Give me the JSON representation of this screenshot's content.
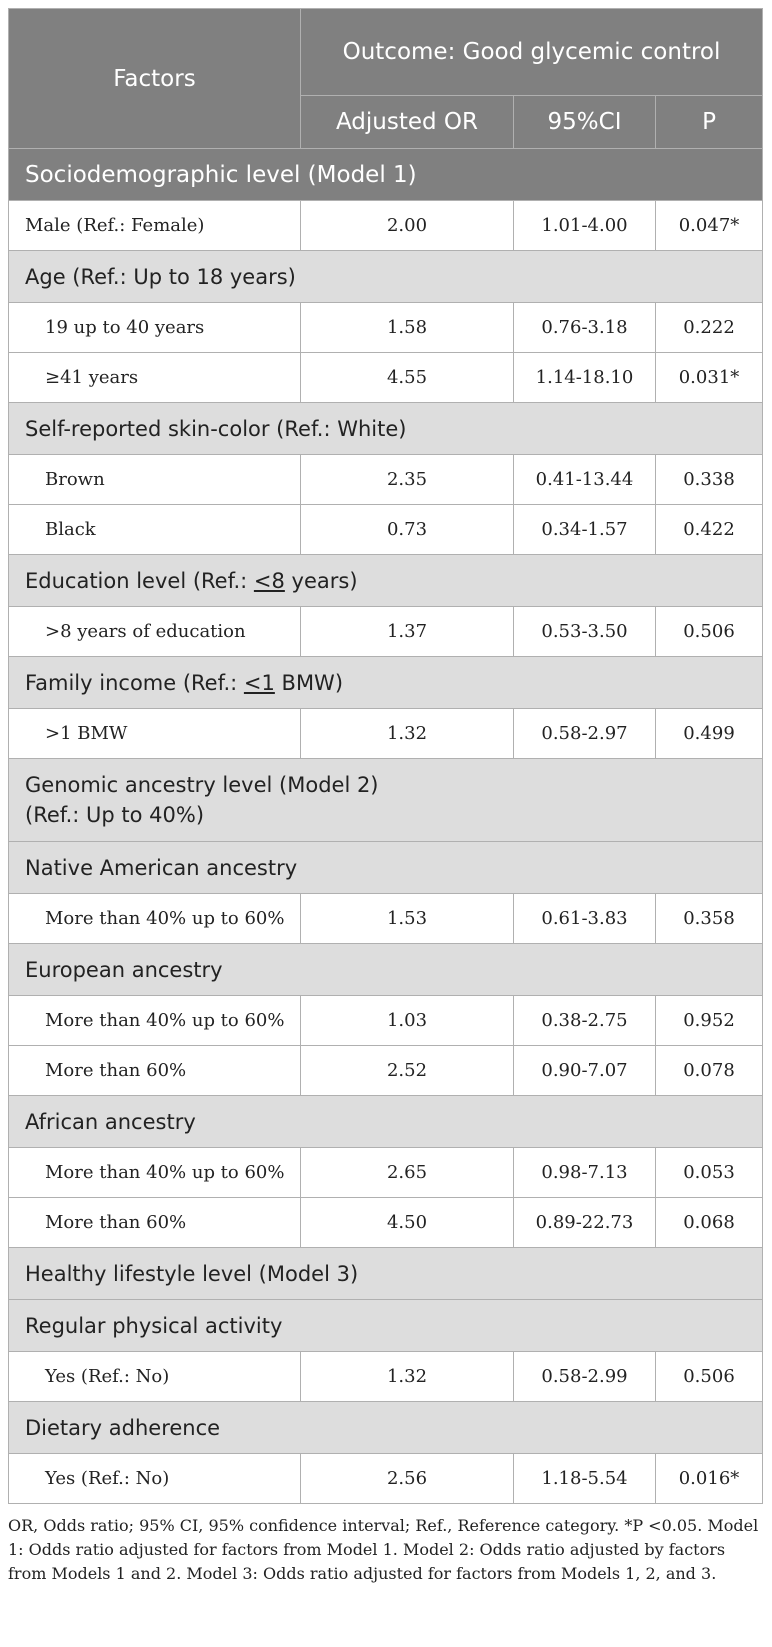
{
  "header": {
    "factors": "Factors",
    "outcome": "Outcome: Good glycemic control",
    "adjusted_or": "Adjusted OR",
    "ci": "95%CI",
    "p": "P"
  },
  "levels": {
    "model1": "Sociodemographic level (Model 1)",
    "model2": "Genomic ancestry level (Model 2)",
    "model2_ref": "(Ref.: Up to 40%)",
    "model3": "Healthy lifestyle level (Model 3)"
  },
  "categories": {
    "age": "Age (Ref.: Up to 18 years)",
    "skin": "Self-reported skin-color (Ref.: White)",
    "education_prefix": "Education level (Ref.: ",
    "education_ref": "<8",
    "education_suffix": " years)",
    "income_prefix": "Family income (Ref.: ",
    "income_ref": "<1",
    "income_suffix": " BMW)",
    "native": "Native American ancestry",
    "european": "European ancestry",
    "african": "African ancestry",
    "physical": "Regular physical activity",
    "diet": "Dietary adherence"
  },
  "rows": {
    "male": {
      "label": "Male (Ref.: Female)",
      "or": "2.00",
      "ci": "1.01-4.00",
      "p": "0.047*"
    },
    "age_19_40": {
      "label": "19 up to 40 years",
      "or": "1.58",
      "ci": "0.76-3.18",
      "p": "0.222"
    },
    "age_41": {
      "label": "≥41 years",
      "or": "4.55",
      "ci": "1.14-18.10",
      "p": "0.031*"
    },
    "brown": {
      "label": "Brown",
      "or": "2.35",
      "ci": "0.41-13.44",
      "p": "0.338"
    },
    "black": {
      "label": "Black",
      "or": "0.73",
      "ci": "0.34-1.57",
      "p": "0.422"
    },
    "edu_8": {
      "label": ">8 years of education",
      "or": "1.37",
      "ci": "0.53-3.50",
      "p": "0.506"
    },
    "income_1": {
      "label": ">1 BMW",
      "or": "1.32",
      "ci": "0.58-2.97",
      "p": "0.499"
    },
    "native_40_60": {
      "label": "More than 40% up to 60%",
      "or": "1.53",
      "ci": "0.61-3.83",
      "p": "0.358"
    },
    "euro_40_60": {
      "label": "More than 40% up to 60%",
      "or": "1.03",
      "ci": "0.38-2.75",
      "p": "0.952"
    },
    "euro_60": {
      "label": "More than 60%",
      "or": "2.52",
      "ci": "0.90-7.07",
      "p": "0.078"
    },
    "afr_40_60": {
      "label": "More than 40% up to 60%",
      "or": "2.65",
      "ci": "0.98-7.13",
      "p": "0.053"
    },
    "afr_60": {
      "label": "More than 60%",
      "or": "4.50",
      "ci": "0.89-22.73",
      "p": "0.068"
    },
    "phys_yes": {
      "label": "Yes (Ref.: No)",
      "or": "1.32",
      "ci": "0.58-2.99",
      "p": "0.506"
    },
    "diet_yes": {
      "label": "Yes (Ref.: No)",
      "or": "2.56",
      "ci": "1.18-5.54",
      "p": "0.016*"
    }
  },
  "footnote": "OR, Odds ratio; 95% CI, 95% confidence interval; Ref., Reference category. *P <0.05. Model 1: Odds ratio adjusted for factors from Model 1. Model 2: Odds ratio adjusted by factors from Models 1 and 2. Model 3: Odds ratio adjusted for factors from Models 1, 2, and 3."
}
